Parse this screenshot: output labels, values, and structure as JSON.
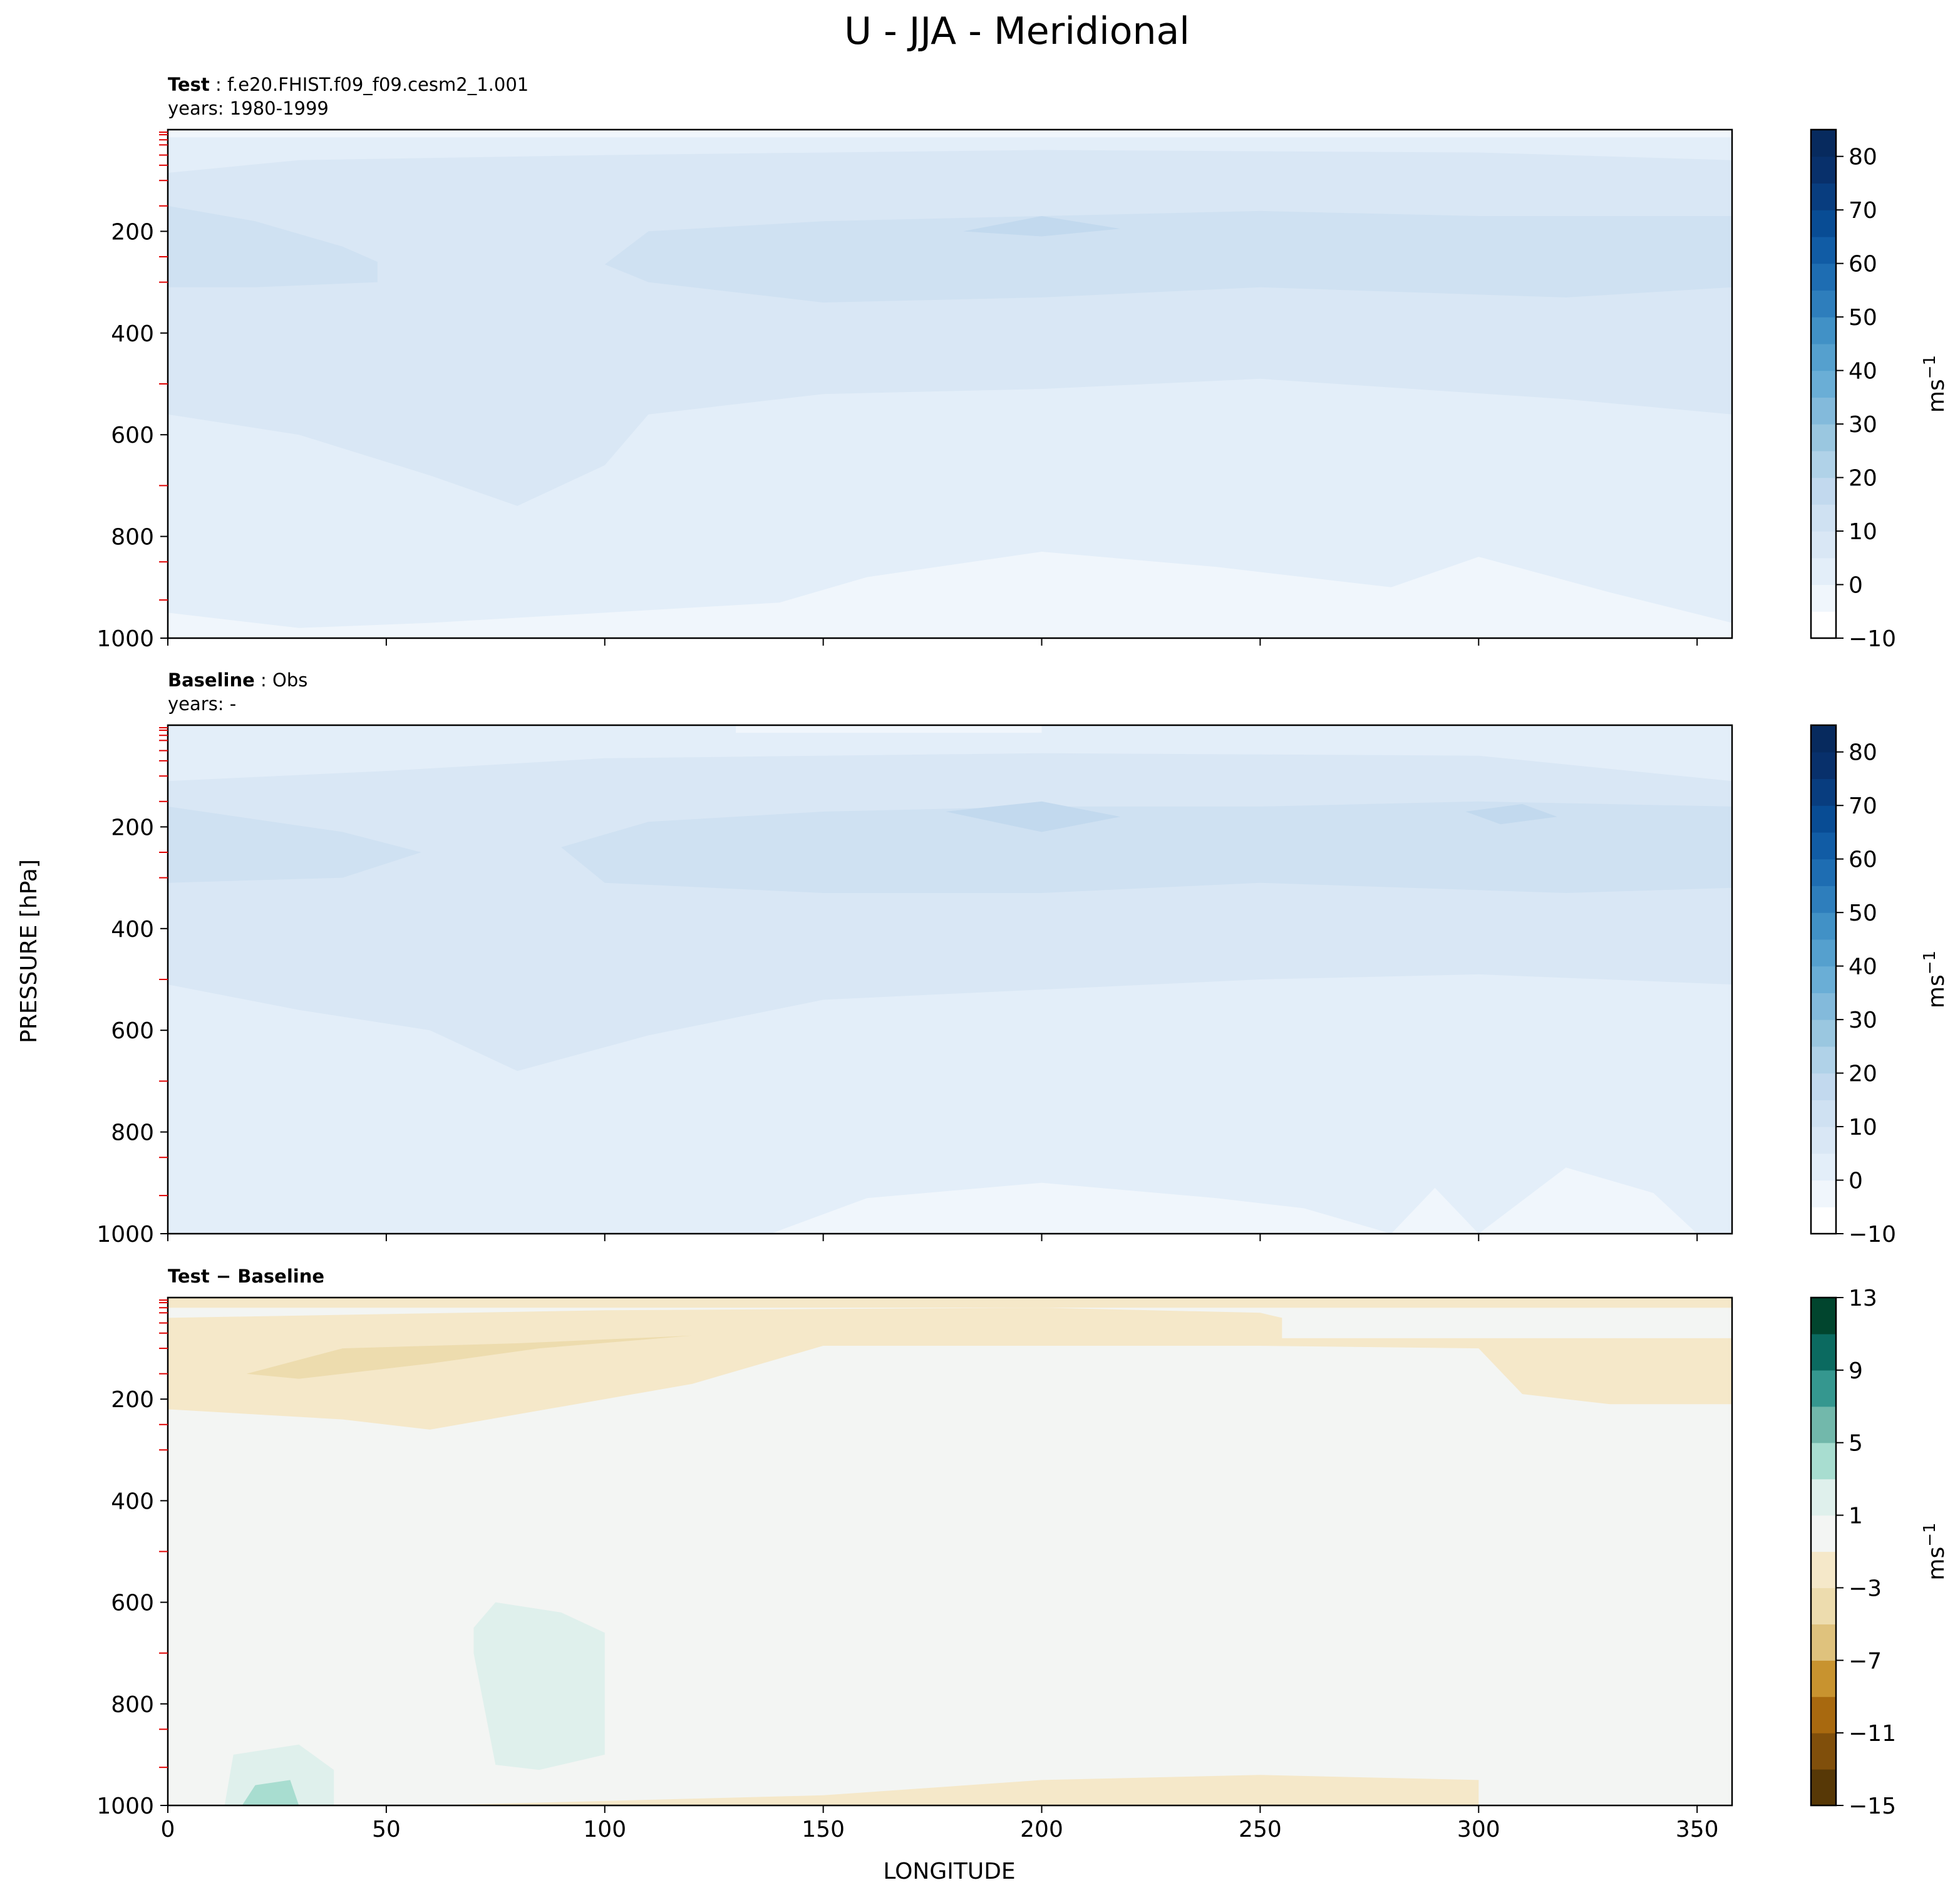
{
  "figure": {
    "title": "U - JJA - Meridional",
    "ylabel": "PRESSURE [hPa]",
    "xlabel": "LONGITUDE"
  },
  "chart_data": [
    {
      "type": "heatmap",
      "panel": "test",
      "label_bold": "Test",
      "label_rest": ": f.e20.FHIST.f09_f09.cesm2_1.001",
      "years": "years: 1980-1999",
      "xlim": [
        0,
        358
      ],
      "ylim": [
        1000,
        0
      ],
      "xticks": [
        0,
        50,
        100,
        150,
        200,
        250,
        300,
        350
      ],
      "yticks": [
        200,
        400,
        600,
        800,
        1000
      ],
      "show_xticklabels": false,
      "colorbar": {
        "label": "ms",
        "label_sup": "−1",
        "min": -10,
        "max": 85,
        "levels": [
          -10,
          -5,
          0,
          5,
          10,
          15,
          20,
          25,
          30,
          35,
          40,
          45,
          50,
          55,
          60,
          65,
          70,
          75,
          80,
          85
        ],
        "tick_labels": [
          "−10",
          "0",
          "10",
          "20",
          "30",
          "40",
          "50",
          "60",
          "70",
          "80"
        ],
        "tick_values": [
          -10,
          0,
          10,
          20,
          30,
          40,
          50,
          60,
          70,
          80
        ],
        "colors": [
          "#ffffff",
          "#f0f6fc",
          "#e3eef9",
          "#d9e7f5",
          "#cfe1f2",
          "#c2d9ee",
          "#b0d2e8",
          "#9ac7e0",
          "#83badb",
          "#6aaed6",
          "#55a0ce",
          "#4191c6",
          "#2e7ebc",
          "#1e6db2",
          "#115ca5",
          "#084c94",
          "#083d7f",
          "#08306b",
          "#072a5e"
        ]
      },
      "fill_color": "#e3eef9",
      "regions": [
        {
          "color": "#d9e7f5",
          "points": [
            [
              0,
              85
            ],
            [
              30,
              60
            ],
            [
              100,
              50
            ],
            [
              200,
              40
            ],
            [
              300,
              45
            ],
            [
              358,
              60
            ],
            [
              358,
              560
            ],
            [
              320,
              530
            ],
            [
              250,
              490
            ],
            [
              200,
              510
            ],
            [
              150,
              520
            ],
            [
              110,
              560
            ],
            [
              100,
              660
            ],
            [
              80,
              740
            ],
            [
              60,
              680
            ],
            [
              30,
              600
            ],
            [
              0,
              560
            ]
          ]
        },
        {
          "color": "#cfe1f2",
          "points": [
            [
              0,
              150
            ],
            [
              20,
              180
            ],
            [
              40,
              230
            ],
            [
              48,
              260
            ],
            [
              48,
              300
            ],
            [
              20,
              310
            ],
            [
              0,
              310
            ]
          ]
        },
        {
          "color": "#cfe1f2",
          "points": [
            [
              100,
              265
            ],
            [
              110,
              200
            ],
            [
              150,
              180
            ],
            [
              200,
              170
            ],
            [
              250,
              160
            ],
            [
              300,
              170
            ],
            [
              358,
              170
            ],
            [
              358,
              310
            ],
            [
              320,
              330
            ],
            [
              250,
              310
            ],
            [
              200,
              330
            ],
            [
              150,
              340
            ],
            [
              110,
              300
            ]
          ]
        },
        {
          "color": "#c2d9ee",
          "points": [
            [
              182,
              200
            ],
            [
              200,
              170
            ],
            [
              218,
              195
            ],
            [
              200,
              210
            ]
          ]
        },
        {
          "color": "#f0f6fc",
          "points": [
            [
              0,
              950
            ],
            [
              30,
              980
            ],
            [
              60,
              970
            ],
            [
              100,
              950
            ],
            [
              140,
              930
            ],
            [
              160,
              880
            ],
            [
              200,
              830
            ],
            [
              240,
              860
            ],
            [
              280,
              900
            ],
            [
              300,
              840
            ],
            [
              330,
              910
            ],
            [
              358,
              970
            ],
            [
              358,
              1000
            ],
            [
              0,
              1000
            ]
          ]
        },
        {
          "color": "#f0f6fc",
          "points": [
            [
              0,
              0
            ],
            [
              358,
              0
            ],
            [
              358,
              15
            ],
            [
              0,
              15
            ]
          ]
        }
      ]
    },
    {
      "type": "heatmap",
      "panel": "baseline",
      "label_bold": "Baseline",
      "label_rest": ": Obs",
      "years": "years: -",
      "xlim": [
        0,
        358
      ],
      "ylim": [
        1000,
        0
      ],
      "xticks": [
        0,
        50,
        100,
        150,
        200,
        250,
        300,
        350
      ],
      "yticks": [
        200,
        400,
        600,
        800,
        1000
      ],
      "show_xticklabels": false,
      "colorbar": {
        "label": "ms",
        "label_sup": "−1",
        "min": -10,
        "max": 85,
        "levels": [
          -10,
          -5,
          0,
          5,
          10,
          15,
          20,
          25,
          30,
          35,
          40,
          45,
          50,
          55,
          60,
          65,
          70,
          75,
          80,
          85
        ],
        "tick_labels": [
          "−10",
          "0",
          "10",
          "20",
          "30",
          "40",
          "50",
          "60",
          "70",
          "80"
        ],
        "tick_values": [
          -10,
          0,
          10,
          20,
          30,
          40,
          50,
          60,
          70,
          80
        ],
        "colors": [
          "#ffffff",
          "#f0f6fc",
          "#e3eef9",
          "#d9e7f5",
          "#cfe1f2",
          "#c2d9ee",
          "#b0d2e8",
          "#9ac7e0",
          "#83badb",
          "#6aaed6",
          "#55a0ce",
          "#4191c6",
          "#2e7ebc",
          "#1e6db2",
          "#115ca5",
          "#084c94",
          "#083d7f",
          "#08306b",
          "#072a5e"
        ]
      },
      "fill_color": "#e3eef9",
      "regions": [
        {
          "color": "#d9e7f5",
          "points": [
            [
              0,
              110
            ],
            [
              50,
              90
            ],
            [
              100,
              65
            ],
            [
              200,
              55
            ],
            [
              300,
              60
            ],
            [
              358,
              110
            ],
            [
              358,
              510
            ],
            [
              300,
              490
            ],
            [
              250,
              500
            ],
            [
              200,
              520
            ],
            [
              150,
              540
            ],
            [
              110,
              610
            ],
            [
              80,
              680
            ],
            [
              60,
              600
            ],
            [
              30,
              560
            ],
            [
              0,
              510
            ]
          ]
        },
        {
          "color": "#cfe1f2",
          "points": [
            [
              0,
              160
            ],
            [
              40,
              210
            ],
            [
              58,
              250
            ],
            [
              40,
              300
            ],
            [
              0,
              310
            ]
          ]
        },
        {
          "color": "#cfe1f2",
          "points": [
            [
              90,
              240
            ],
            [
              110,
              190
            ],
            [
              150,
              170
            ],
            [
              200,
              160
            ],
            [
              250,
              160
            ],
            [
              300,
              150
            ],
            [
              358,
              160
            ],
            [
              358,
              320
            ],
            [
              320,
              330
            ],
            [
              250,
              310
            ],
            [
              200,
              330
            ],
            [
              150,
              330
            ],
            [
              100,
              310
            ]
          ]
        },
        {
          "color": "#c2d9ee",
          "points": [
            [
              178,
              170
            ],
            [
              200,
              150
            ],
            [
              218,
              180
            ],
            [
              200,
              210
            ]
          ]
        },
        {
          "color": "#c2d9ee",
          "points": [
            [
              297,
              170
            ],
            [
              310,
              155
            ],
            [
              318,
              180
            ],
            [
              305,
              195
            ]
          ]
        },
        {
          "color": "#f0f6fc",
          "points": [
            [
              138,
              1000
            ],
            [
              160,
              930
            ],
            [
              200,
              900
            ],
            [
              240,
              930
            ],
            [
              260,
              950
            ],
            [
              280,
              1000
            ],
            [
              290,
              910
            ],
            [
              300,
              1000
            ],
            [
              320,
              870
            ],
            [
              340,
              920
            ],
            [
              350,
              1000
            ]
          ]
        },
        {
          "color": "#f0f6fc",
          "points": [
            [
              130,
              0
            ],
            [
              200,
              0
            ],
            [
              200,
              15
            ],
            [
              130,
              15
            ]
          ]
        }
      ]
    },
    {
      "type": "heatmap",
      "panel": "difference",
      "label_bold": "Test − Baseline",
      "label_rest": "",
      "years": "",
      "xlim": [
        0,
        358
      ],
      "ylim": [
        1000,
        0
      ],
      "xticks": [
        0,
        50,
        100,
        150,
        200,
        250,
        300,
        350
      ],
      "xticklabels": [
        "0",
        "50",
        "100",
        "150",
        "200",
        "250",
        "300",
        "350"
      ],
      "yticks": [
        200,
        400,
        600,
        800,
        1000
      ],
      "show_xticklabels": true,
      "colorbar": {
        "label": "ms",
        "label_sup": "−1",
        "min": -15,
        "max": 13,
        "levels": [
          -15,
          -13,
          -11,
          -9,
          -7,
          -5,
          -3,
          -1,
          1,
          3,
          5,
          7,
          9,
          11,
          13
        ],
        "tick_labels": [
          "−15",
          "−11",
          "−7",
          "−3",
          "1",
          "5",
          "9",
          "13"
        ],
        "tick_values": [
          -15,
          -11,
          -7,
          -3,
          1,
          5,
          9,
          13
        ],
        "colors": [
          "#573806",
          "#804f0b",
          "#a8690f",
          "#c8932f",
          "#dfc27d",
          "#eddcae",
          "#f5e8c9",
          "#f3f5f3",
          "#dff0ec",
          "#a8ddd0",
          "#72b8ab",
          "#35978f",
          "#0b6a60",
          "#01452e"
        ]
      },
      "fill_color": "#f3f5f3",
      "regions": [
        {
          "color": "#f5e8c9",
          "points": [
            [
              0,
              40
            ],
            [
              100,
              25
            ],
            [
              200,
              20
            ],
            [
              250,
              30
            ],
            [
              255,
              40
            ],
            [
              255,
              80
            ],
            [
              358,
              80
            ],
            [
              358,
              210
            ],
            [
              330,
              210
            ],
            [
              310,
              190
            ],
            [
              300,
              100
            ],
            [
              250,
              95
            ],
            [
              150,
              95
            ],
            [
              120,
              170
            ],
            [
              100,
              200
            ],
            [
              80,
              230
            ],
            [
              60,
              260
            ],
            [
              40,
              240
            ],
            [
              0,
              220
            ]
          ]
        },
        {
          "color": "#eddcae",
          "points": [
            [
              18,
              150
            ],
            [
              40,
              100
            ],
            [
              80,
              90
            ],
            [
              120,
              75
            ],
            [
              85,
              100
            ],
            [
              60,
              130
            ],
            [
              30,
              160
            ]
          ]
        },
        {
          "color": "#f5e8c9",
          "points": [
            [
              0,
              0
            ],
            [
              358,
              0
            ],
            [
              358,
              20
            ],
            [
              0,
              20
            ]
          ]
        },
        {
          "color": "#dff0ec",
          "points": [
            [
              70,
              650
            ],
            [
              75,
              600
            ],
            [
              90,
              620
            ],
            [
              100,
              660
            ],
            [
              100,
              900
            ],
            [
              85,
              930
            ],
            [
              75,
              920
            ],
            [
              70,
              700
            ]
          ]
        },
        {
          "color": "#dff0ec",
          "points": [
            [
              13,
              1000
            ],
            [
              15,
              900
            ],
            [
              30,
              880
            ],
            [
              38,
              930
            ],
            [
              38,
              1000
            ]
          ]
        },
        {
          "color": "#a8ddd0",
          "points": [
            [
              17,
              1000
            ],
            [
              20,
              960
            ],
            [
              28,
              950
            ],
            [
              30,
              1000
            ]
          ]
        },
        {
          "color": "#f5e8c9",
          "points": [
            [
              60,
              1000
            ],
            [
              150,
              980
            ],
            [
              200,
              950
            ],
            [
              250,
              940
            ],
            [
              300,
              950
            ],
            [
              300,
              1000
            ]
          ]
        }
      ]
    }
  ]
}
